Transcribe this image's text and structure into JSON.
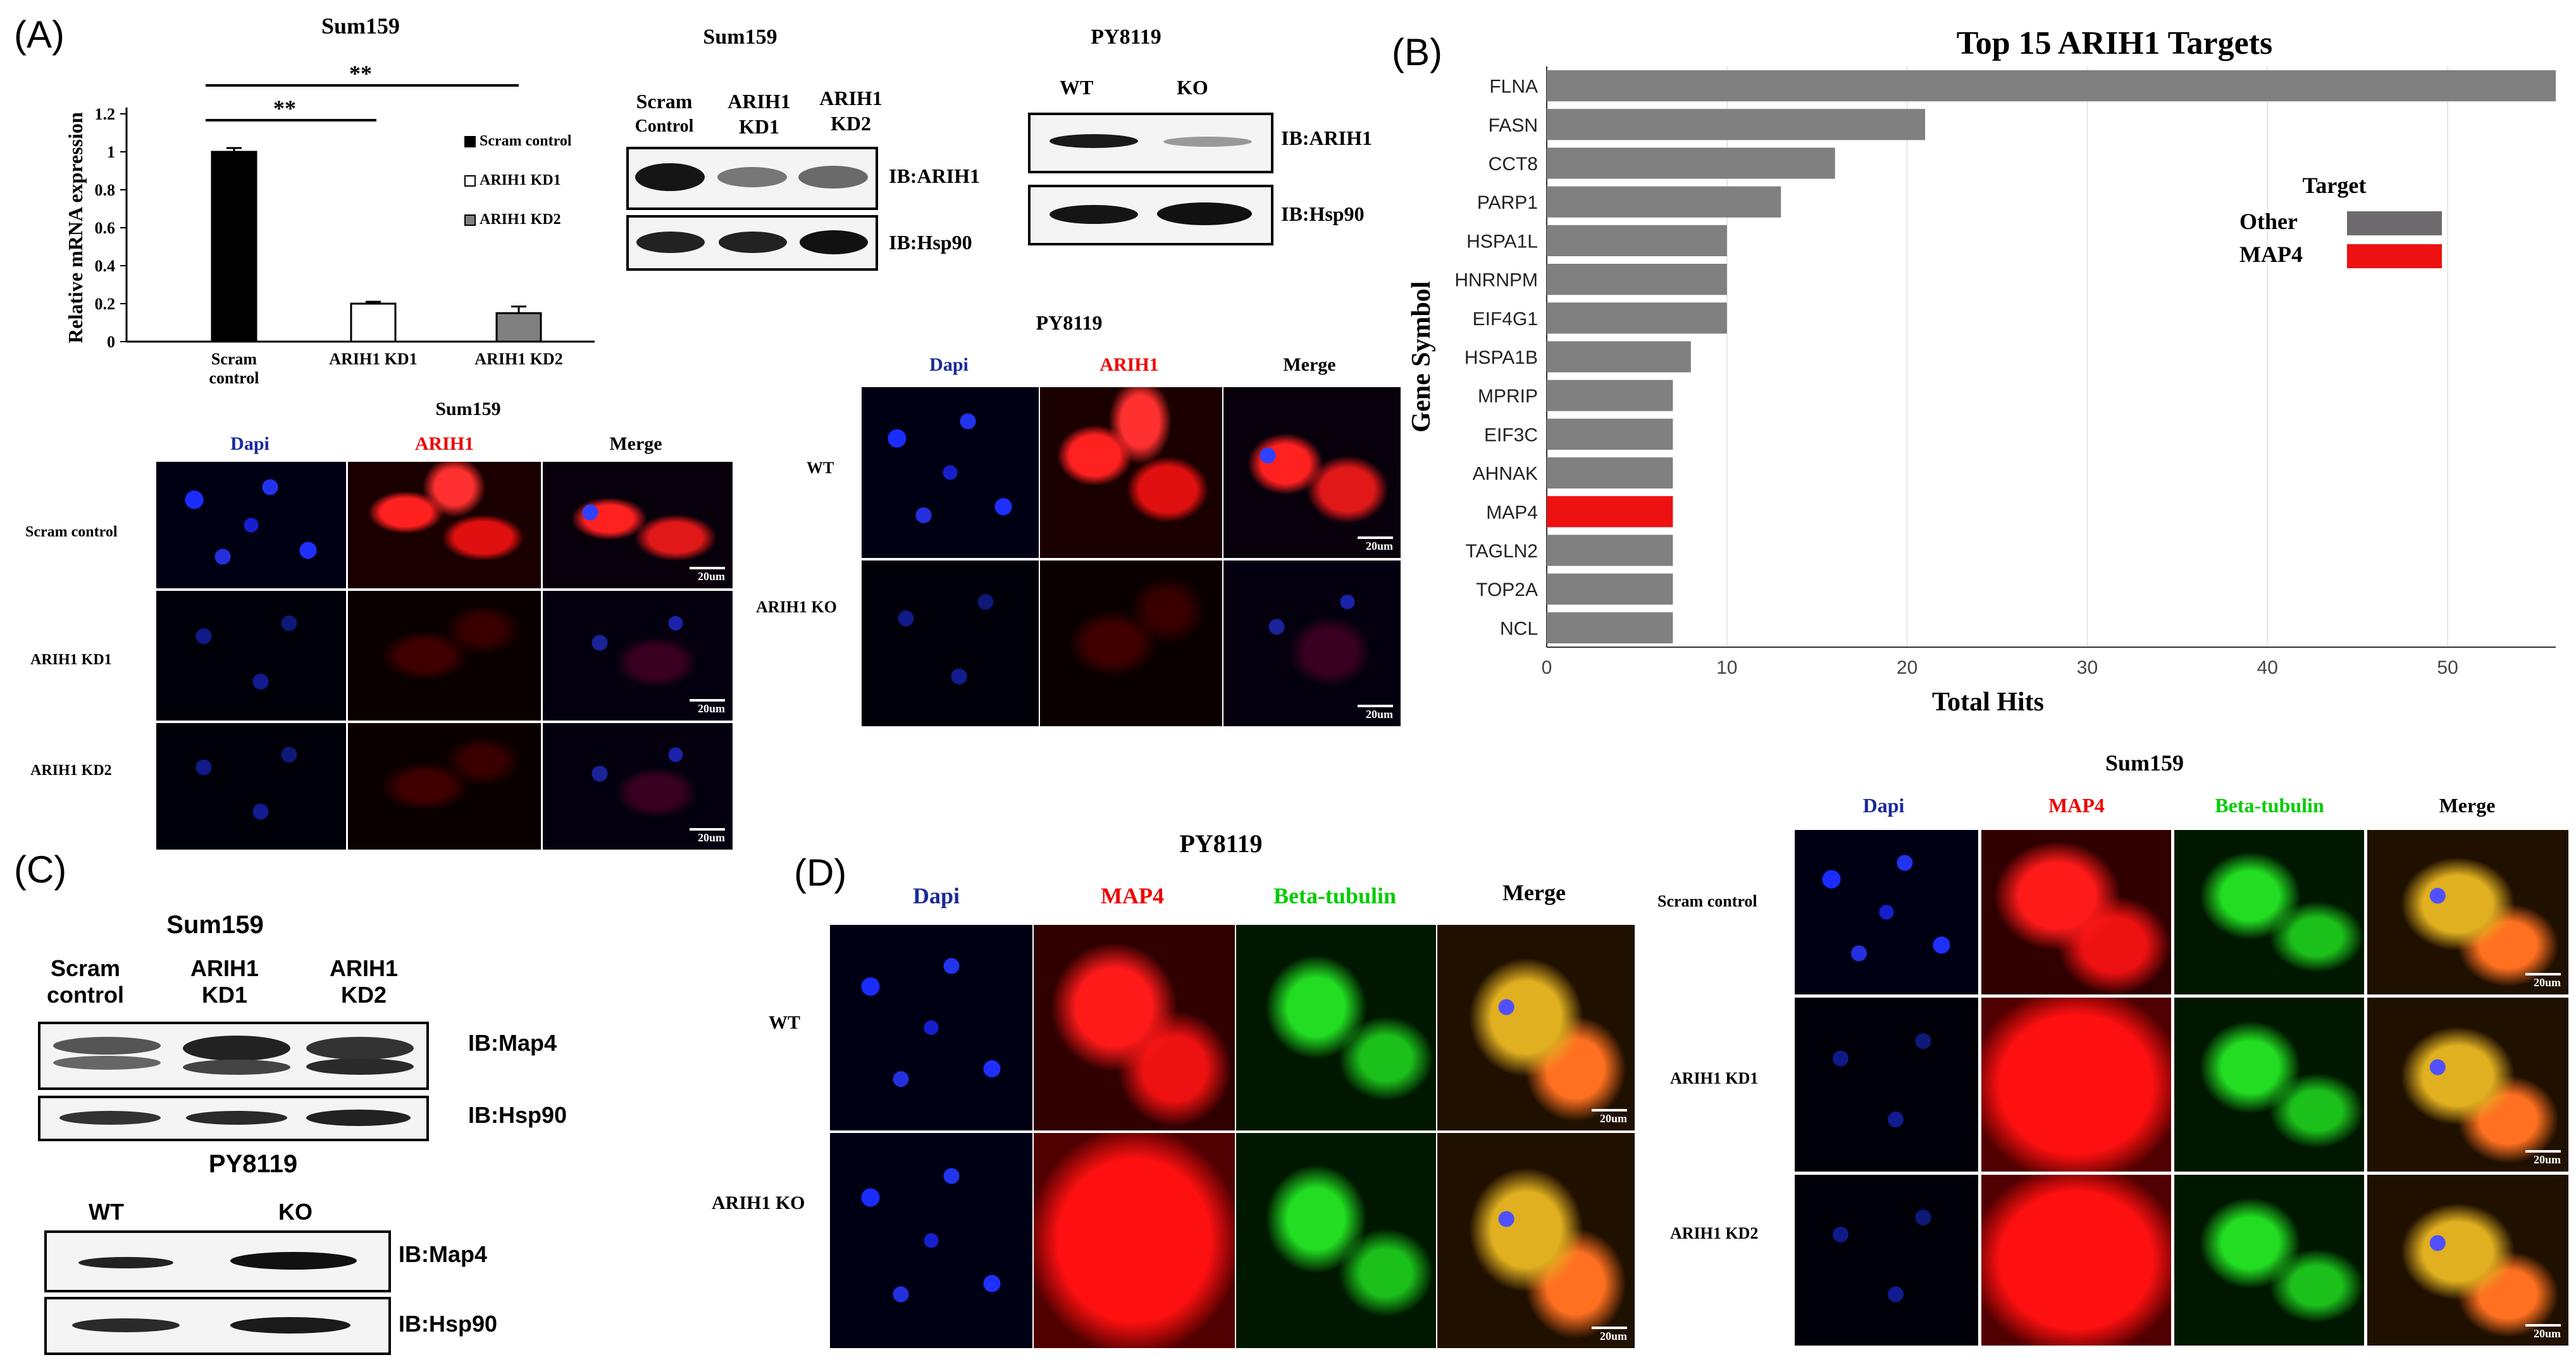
{
  "panels": {
    "A": "(A)",
    "B": "(B)",
    "C": "(C)",
    "D": "(D)"
  },
  "panelA": {
    "bar_title": "Sum159",
    "ylabel": "Relative mRNA expression",
    "yticks": [
      "0",
      "0.2",
      "0.4",
      "0.6",
      "0.8",
      "1",
      "1.2"
    ],
    "xcats": [
      "Scram\ncontrol",
      "ARIH1 KD1",
      "ARIH1 KD2"
    ],
    "sig1": "**",
    "sig2": "**",
    "legend": [
      "Scram control",
      "ARIH1 KD1",
      "ARIH1 KD2"
    ],
    "bars": {
      "values": [
        1.0,
        0.2,
        0.15
      ],
      "errors": [
        0.02,
        0.01,
        0.035
      ],
      "colors": [
        "#000000",
        "#ffffff",
        "#808080"
      ]
    },
    "wb_sum_title": "Sum159",
    "wb_sum_lanes": [
      "Scram",
      "Control",
      "ARIH1",
      "KD1",
      "ARIH1",
      "KD2"
    ],
    "wb_sum_ib1": "IB:ARIH1",
    "wb_sum_ib2": "IB:Hsp90",
    "wb_py_title": "PY8119",
    "wb_py_lanes": [
      "WT",
      "KO"
    ],
    "wb_py_ib1": "IB:ARIH1",
    "wb_py_ib2": "IB:Hsp90",
    "if_sum_title": "Sum159",
    "if_sum_cols": [
      "Dapi",
      "ARIH1",
      "Merge"
    ],
    "if_sum_rows": [
      "Scram control",
      "ARIH1 KD1",
      "ARIH1 KD2"
    ],
    "if_py_title": "PY8119",
    "if_py_cols": [
      "Dapi",
      "ARIH1",
      "Merge"
    ],
    "if_py_rows": [
      "WT",
      "ARIH1 KO"
    ],
    "scale": "20um"
  },
  "panelC": {
    "sum_title": "Sum159",
    "sum_lanes": [
      "Scram",
      "control",
      "ARIH1",
      "KD1",
      "ARIH1",
      "KD2"
    ],
    "sum_ib1": "IB:Map4",
    "sum_ib2": "IB:Hsp90",
    "py_title": "PY8119",
    "py_lanes": [
      "WT",
      "KO"
    ],
    "py_ib1": "IB:Map4",
    "py_ib2": "IB:Hsp90"
  },
  "panelD": {
    "py_title": "PY8119",
    "py_cols": [
      "Dapi",
      "MAP4",
      "Beta-tubulin",
      "Merge"
    ],
    "py_rows": [
      "WT",
      "ARIH1 KO"
    ],
    "sum_title": "Sum159",
    "sum_cols": [
      "Dapi",
      "MAP4",
      "Beta-tubulin",
      "Merge"
    ],
    "sum_rows": [
      "Scram control",
      "ARIH1 KD1",
      "ARIH1 KD2"
    ],
    "scale": "20um"
  },
  "chart_data": {
    "type": "bar",
    "orientation": "horizontal",
    "title": "Top 15 ARIH1 Targets",
    "xlabel": "Total Hits",
    "ylabel": "Gene Symbol",
    "categories": [
      "FLNA",
      "FASN",
      "CCT8",
      "PARP1",
      "HSPA1L",
      "HNRNPM",
      "EIF4G1",
      "HSPA1B",
      "MPRIP",
      "EIF3C",
      "AHNAK",
      "MAP4",
      "TAGLN2",
      "TOP2A",
      "NCL"
    ],
    "values": [
      56,
      21,
      16,
      13,
      10,
      10,
      10,
      8,
      7,
      7,
      7,
      7,
      7,
      7,
      7
    ],
    "bar_colors": [
      "#808080",
      "#808080",
      "#808080",
      "#808080",
      "#808080",
      "#808080",
      "#808080",
      "#808080",
      "#808080",
      "#808080",
      "#808080",
      "#ee1111",
      "#808080",
      "#808080",
      "#808080"
    ],
    "xticks": [
      0,
      10,
      20,
      30,
      40,
      50
    ],
    "xlim": [
      0,
      56
    ],
    "grid": "vertical",
    "legend": {
      "title": "Target",
      "placement": "right",
      "entries": [
        {
          "label": "Other",
          "color": "#6e6a6d"
        },
        {
          "label": "MAP4",
          "color": "#ee1111"
        }
      ]
    }
  }
}
